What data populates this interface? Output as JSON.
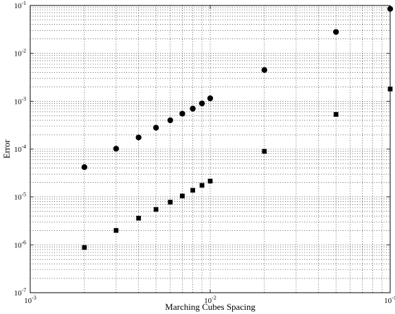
{
  "chart_data": {
    "type": "scatter",
    "title": "",
    "xlabel": "Marching Cubes Spacing",
    "ylabel": "Error",
    "xscale": "log",
    "yscale": "log",
    "xlim": [
      0.001,
      0.1
    ],
    "ylim": [
      1e-07,
      0.1
    ],
    "grid": true,
    "grid_style": "dotted, major and minor",
    "x_ticks": [
      {
        "base": "10",
        "exp": "-3"
      },
      {
        "base": "10",
        "exp": "-2"
      },
      {
        "base": "10",
        "exp": "-1"
      }
    ],
    "y_ticks": [
      {
        "base": "10",
        "exp": "-7"
      },
      {
        "base": "10",
        "exp": "-6"
      },
      {
        "base": "10",
        "exp": "-5"
      },
      {
        "base": "10",
        "exp": "-4"
      },
      {
        "base": "10",
        "exp": "-3"
      },
      {
        "base": "10",
        "exp": "-2"
      },
      {
        "base": "10",
        "exp": "-1"
      }
    ],
    "series": [
      {
        "marker": "circle",
        "color": "#000000",
        "x": [
          0.002,
          0.003,
          0.004,
          0.005,
          0.006,
          0.007,
          0.008,
          0.009,
          0.01,
          0.02,
          0.05,
          0.1
        ],
        "y": [
          4.2e-05,
          0.000102,
          0.000175,
          0.00028,
          0.0004,
          0.00055,
          0.0007,
          0.0009,
          0.00115,
          0.0045,
          0.028,
          0.085
        ]
      },
      {
        "marker": "square",
        "color": "#000000",
        "x": [
          0.002,
          0.003,
          0.004,
          0.005,
          0.006,
          0.007,
          0.008,
          0.009,
          0.01,
          0.02,
          0.05,
          0.1
        ],
        "y": [
          8.8e-07,
          2e-06,
          3.6e-06,
          5.5e-06,
          7.8e-06,
          1.05e-05,
          1.38e-05,
          1.75e-05,
          2.15e-05,
          9e-05,
          0.00053,
          0.0018
        ]
      }
    ]
  }
}
